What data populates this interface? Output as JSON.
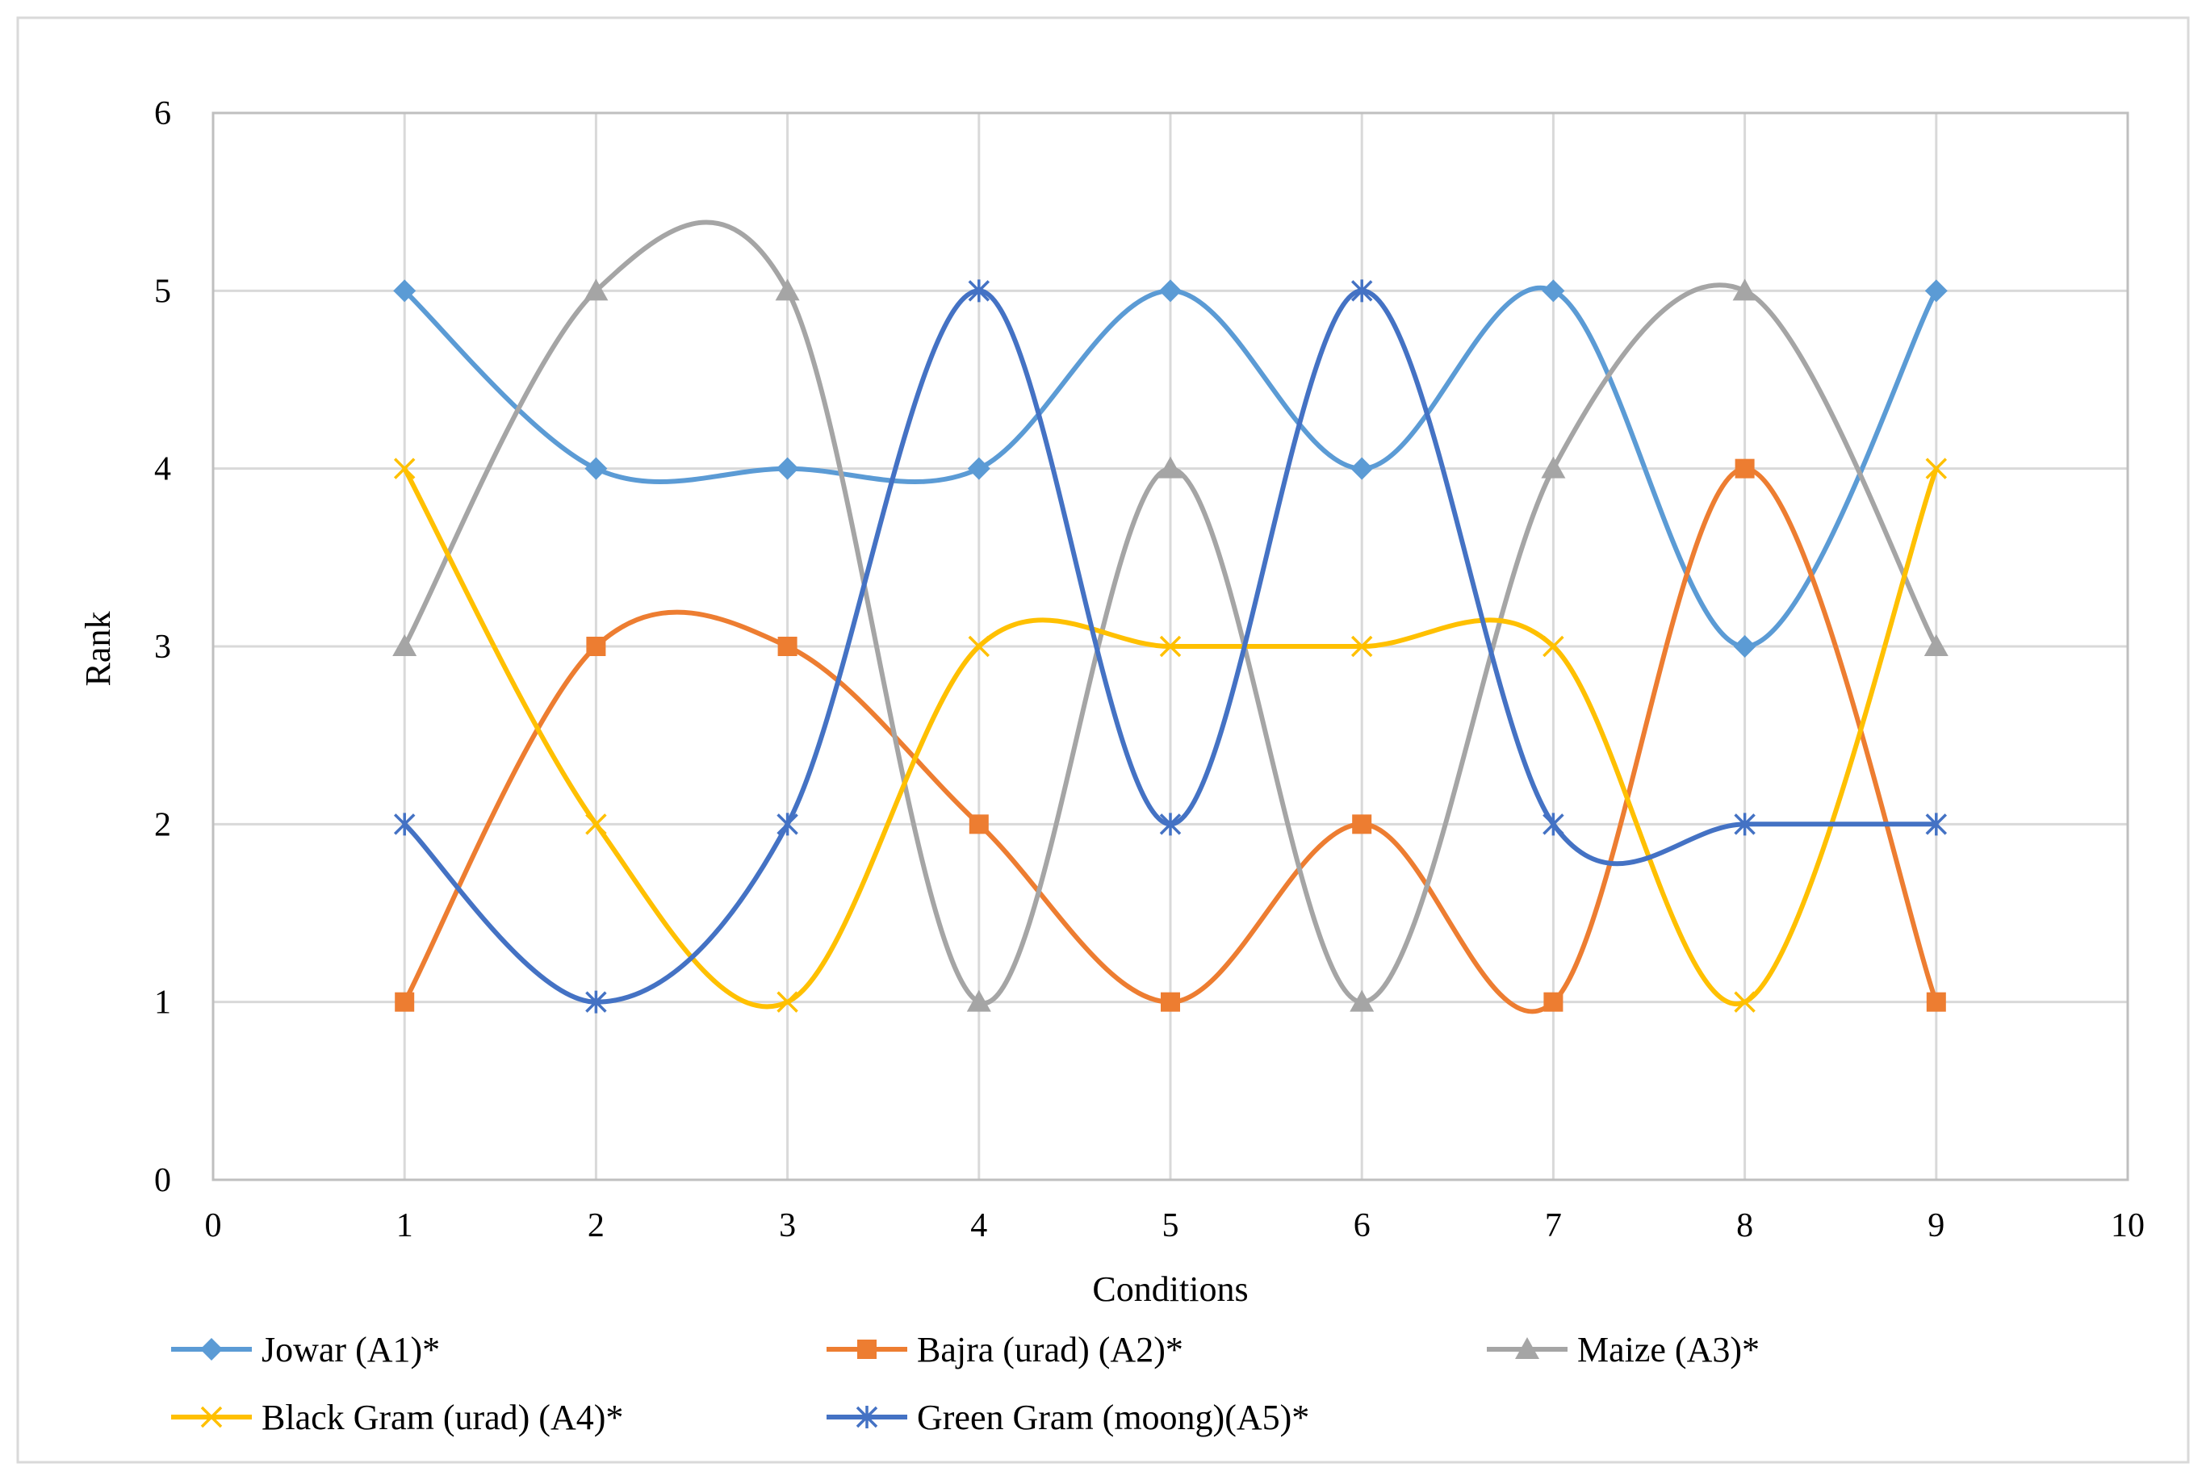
{
  "chart_data": {
    "type": "line",
    "smooth": true,
    "title": "",
    "xlabel": "Conditions",
    "ylabel": "Rank",
    "xlim": [
      0,
      10
    ],
    "ylim": [
      0,
      6
    ],
    "x_ticks": [
      0,
      1,
      2,
      3,
      4,
      5,
      6,
      7,
      8,
      9,
      10
    ],
    "y_ticks": [
      0,
      1,
      2,
      3,
      4,
      5,
      6
    ],
    "grid": true,
    "legend_position": "bottom",
    "x": [
      1,
      2,
      3,
      4,
      5,
      6,
      7,
      8,
      9
    ],
    "series": [
      {
        "name": "Jowar (A1)*",
        "color": "#5B9BD5",
        "marker": "diamond",
        "values": [
          5,
          4,
          4,
          4,
          5,
          4,
          5,
          3,
          5
        ]
      },
      {
        "name": "Bajra (urad) (A2)*",
        "color": "#ED7D31",
        "marker": "square",
        "values": [
          1,
          3,
          3,
          2,
          1,
          2,
          1,
          4,
          1
        ]
      },
      {
        "name": "Maize (A3)*",
        "color": "#A5A5A5",
        "marker": "triangle",
        "values": [
          3,
          5,
          5,
          1,
          4,
          1,
          4,
          5,
          3
        ]
      },
      {
        "name": "Black Gram (urad) (A4)*",
        "color": "#FFC000",
        "marker": "x",
        "values": [
          4,
          2,
          1,
          3,
          3,
          3,
          3,
          1,
          4
        ]
      },
      {
        "name": "Green Gram (moong)(A5)*",
        "color": "#4472C4",
        "marker": "star",
        "values": [
          2,
          1,
          2,
          5,
          2,
          5,
          2,
          2,
          2
        ]
      }
    ]
  }
}
